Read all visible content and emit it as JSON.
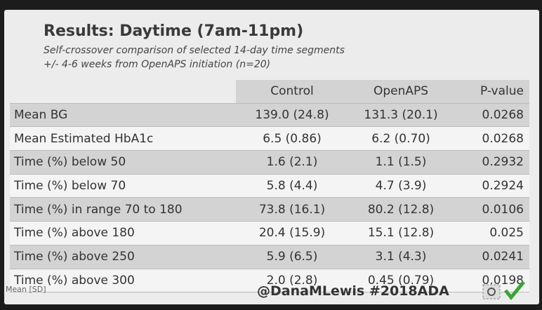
{
  "header": {
    "title": "Results: Daytime (7am-11pm)",
    "subtitle": [
      "Self-crossover comparison of selected 14-day time segments",
      "+/- 4-6 weeks from OpenAPS initiation (n=20)"
    ]
  },
  "table": {
    "columns": [
      "Control",
      "OpenAPS",
      "P-value"
    ],
    "rows": [
      [
        "Mean BG",
        "139.0 (24.8)",
        "131.3 (20.1)",
        "0.0268"
      ],
      [
        "Mean Estimated HbA1c",
        "6.5 (0.86)",
        "6.2 (0.70)",
        "0.0268"
      ],
      [
        "Time (%) below 50",
        "1.6 (2.1)",
        "1.1 (1.5)",
        "0.2932"
      ],
      [
        "Time (%) below 70",
        "5.8 (4.4)",
        "4.7 (3.9)",
        "0.2924"
      ],
      [
        "Time (%) in range 70 to 180",
        "73.8 (16.1)",
        "80.2 (12.8)",
        "0.0106"
      ],
      [
        "Time (%) above 180",
        "20.4 (15.9)",
        "15.1 (12.8)",
        "0.025"
      ],
      [
        "Time (%) above 250",
        "5.9 (6.5)",
        "3.1 (4.3)",
        "0.0241"
      ],
      [
        "Time (%) above 300",
        "2.0 (2.8)",
        "0.45 (0.79)",
        "0.0198"
      ]
    ]
  },
  "footnote": "Mean [SD]",
  "watermark": "@DanaMLewis #2018ADA"
}
